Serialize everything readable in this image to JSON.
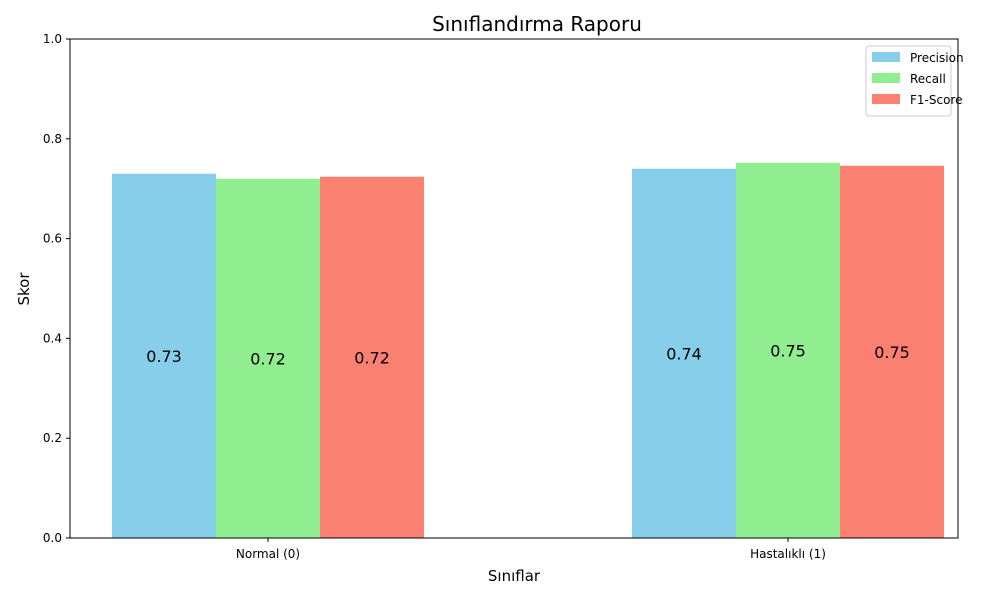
{
  "chart_data": {
    "type": "bar",
    "title": "Sınıflandırma Raporu",
    "xlabel": "Sınıflar",
    "ylabel": "Skor",
    "categories": [
      "Normal (0)",
      "Hastalıklı (1)"
    ],
    "ylim": [
      0,
      1
    ],
    "yticks": [
      "0.0",
      "0.2",
      "0.4",
      "0.6",
      "0.8",
      "1.0"
    ],
    "grid": false,
    "legend_position": "top-right",
    "series": [
      {
        "name": "Precision",
        "color": "#87CEEB",
        "values": [
          0.73,
          0.74
        ],
        "labels": [
          "0.73",
          "0.74"
        ]
      },
      {
        "name": "Recall",
        "color": "#90EE90",
        "values": [
          0.72,
          0.752
        ],
        "labels": [
          "0.72",
          "0.75"
        ]
      },
      {
        "name": "F1-Score",
        "color": "#FA8072",
        "values": [
          0.724,
          0.746
        ],
        "labels": [
          "0.72",
          "0.75"
        ]
      }
    ]
  }
}
